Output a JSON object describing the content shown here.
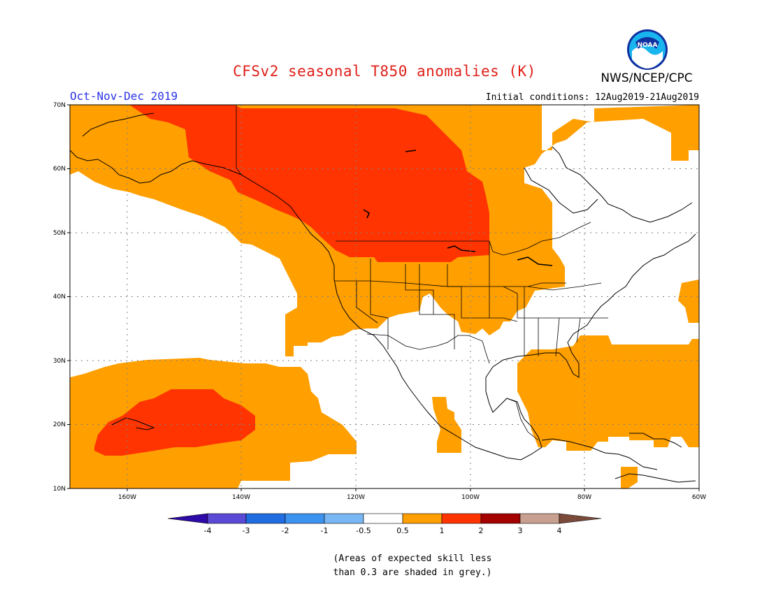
{
  "header": {
    "title": "CFSv2 seasonal T850 anomalies (K)",
    "organization": "NWS/NCEP/CPC",
    "season": "Oct-Nov-Dec 2019",
    "initial_conditions": "Initial conditions: 12Aug2019-21Aug2019",
    "logo_text": "NOAA"
  },
  "map": {
    "lat_labels": [
      "70N",
      "60N",
      "50N",
      "40N",
      "30N",
      "20N",
      "10N"
    ],
    "lon_labels": [
      "160W",
      "140W",
      "120W",
      "100W",
      "80W",
      "60W"
    ],
    "lon_range": [
      -170,
      -60
    ],
    "lat_range": [
      10,
      70
    ],
    "colors": {
      "anomaly_0_5_to_1": "#ff9f00",
      "anomaly_1_to_2": "#ff3400",
      "grid": "#7f7f7f"
    }
  },
  "colorbar": {
    "labels": [
      "-4",
      "-3",
      "-2",
      "-1",
      "-0.5",
      "0.5",
      "1",
      "2",
      "3",
      "4"
    ],
    "colors": [
      "#2e0aa8",
      "#5a4ad6",
      "#1f6de0",
      "#3c93ef",
      "#78b6f4",
      "#ffffff",
      "#ff9f00",
      "#ff3400",
      "#a50000",
      "#c8a090",
      "#7a4a3a"
    ]
  },
  "footnote": {
    "line1": "(Areas of expected skill less",
    "line2": "than 0.3 are shaded in grey.)"
  }
}
